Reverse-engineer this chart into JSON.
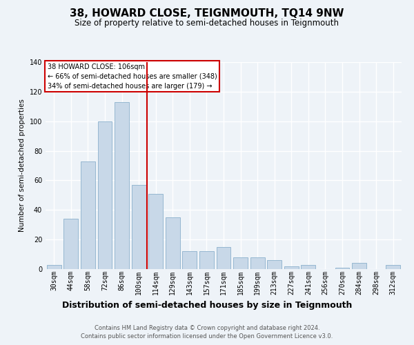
{
  "title": "38, HOWARD CLOSE, TEIGNMOUTH, TQ14 9NW",
  "subtitle": "Size of property relative to semi-detached houses in Teignmouth",
  "xlabel": "Distribution of semi-detached houses by size in Teignmouth",
  "ylabel": "Number of semi-detached properties",
  "footer_line1": "Contains HM Land Registry data © Crown copyright and database right 2024.",
  "footer_line2": "Contains public sector information licensed under the Open Government Licence v3.0.",
  "categories": [
    "30sqm",
    "44sqm",
    "58sqm",
    "72sqm",
    "86sqm",
    "100sqm",
    "114sqm",
    "129sqm",
    "143sqm",
    "157sqm",
    "171sqm",
    "185sqm",
    "199sqm",
    "213sqm",
    "227sqm",
    "241sqm",
    "256sqm",
    "270sqm",
    "284sqm",
    "298sqm",
    "312sqm"
  ],
  "values": [
    3,
    34,
    73,
    100,
    113,
    57,
    51,
    35,
    12,
    12,
    15,
    8,
    8,
    6,
    2,
    3,
    0,
    1,
    4,
    0,
    3
  ],
  "bar_color": "#c8d8e8",
  "bar_edge_color": "#8ab0cc",
  "vline_x": 5.5,
  "vline_color": "#cc0000",
  "annotation_title": "38 HOWARD CLOSE: 106sqm",
  "annotation_line1": "← 66% of semi-detached houses are smaller (348)",
  "annotation_line2": "34% of semi-detached houses are larger (179) →",
  "annotation_box_color": "#cc0000",
  "ylim": [
    0,
    140
  ],
  "yticks": [
    0,
    20,
    40,
    60,
    80,
    100,
    120,
    140
  ],
  "background_color": "#eef3f8",
  "grid_color": "#ffffff",
  "title_fontsize": 11,
  "subtitle_fontsize": 8.5,
  "ylabel_fontsize": 7.5,
  "xlabel_fontsize": 9,
  "tick_fontsize": 7,
  "annotation_fontsize": 7,
  "footer_fontsize": 6
}
